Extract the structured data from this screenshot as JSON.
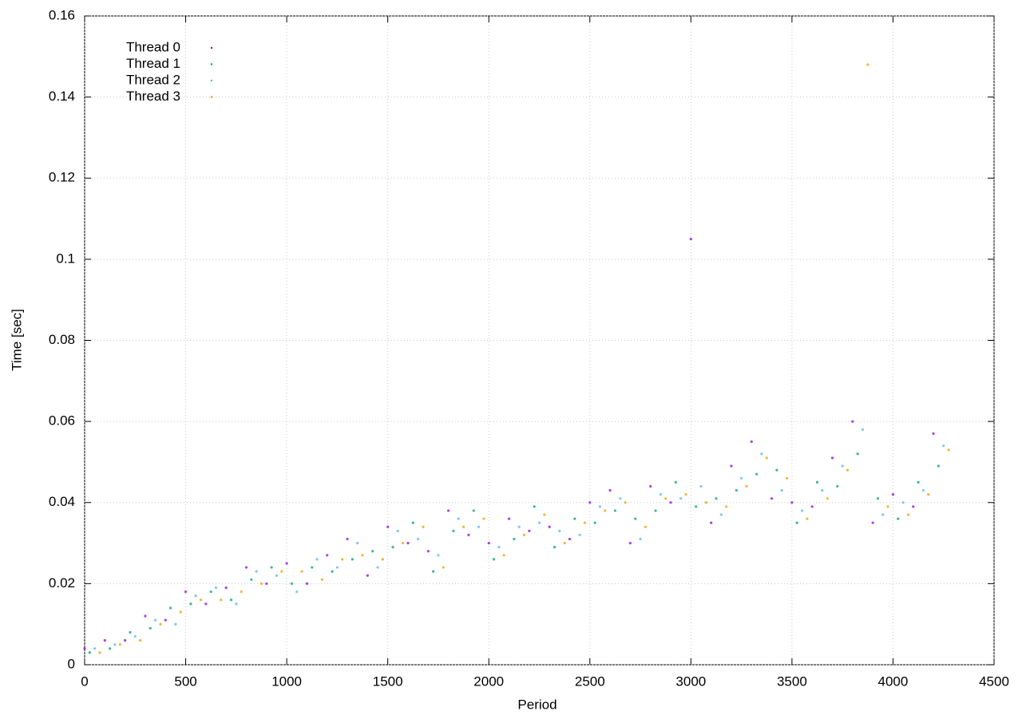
{
  "chart_data": {
    "type": "scatter",
    "x_label": "Period",
    "y_label": "Time [sec]",
    "xlim": [
      0,
      4500
    ],
    "ylim": [
      0,
      0.16
    ],
    "xticks": [
      0,
      500,
      1000,
      1500,
      2000,
      2500,
      3000,
      3500,
      4000,
      4500
    ],
    "yticks": [
      0,
      0.02,
      0.04,
      0.06,
      0.08,
      0.1,
      0.12,
      0.14,
      0.16
    ],
    "grid": true,
    "legend": "top-left",
    "series": [
      {
        "name": "Thread 0",
        "color": "#9400d3",
        "x": [
          0,
          100,
          200,
          300,
          400,
          500,
          600,
          700,
          800,
          900,
          1000,
          1100,
          1200,
          1300,
          1400,
          1500,
          1600,
          1700,
          1800,
          1900,
          2000,
          2100,
          2200,
          2300,
          2400,
          2500,
          2600,
          2700,
          2800,
          2900,
          3000,
          3100,
          3200,
          3300,
          3400,
          3500,
          3600,
          3700,
          3800,
          3900,
          4000,
          4100,
          4200
        ],
        "values": [
          0.004,
          0.006,
          0.006,
          0.012,
          0.011,
          0.018,
          0.015,
          0.019,
          0.024,
          0.02,
          0.025,
          0.02,
          0.027,
          0.031,
          0.022,
          0.034,
          0.03,
          0.028,
          0.038,
          0.032,
          0.03,
          0.036,
          0.033,
          0.034,
          0.031,
          0.04,
          0.043,
          0.03,
          0.044,
          0.04,
          0.105,
          0.035,
          0.049,
          0.055,
          0.041,
          0.04,
          0.039,
          0.051,
          0.06,
          0.035,
          0.042,
          0.039,
          0.057
        ]
      },
      {
        "name": "Thread 1",
        "color": "#009e73",
        "x": [
          25,
          125,
          225,
          325,
          425,
          525,
          625,
          725,
          825,
          925,
          1025,
          1125,
          1225,
          1325,
          1425,
          1525,
          1625,
          1725,
          1825,
          1925,
          2025,
          2125,
          2225,
          2325,
          2425,
          2525,
          2625,
          2725,
          2825,
          2925,
          3025,
          3125,
          3225,
          3325,
          3425,
          3525,
          3625,
          3725,
          3825,
          3925,
          4025,
          4125,
          4225
        ],
        "values": [
          0.003,
          0.004,
          0.008,
          0.009,
          0.014,
          0.015,
          0.018,
          0.016,
          0.021,
          0.024,
          0.02,
          0.024,
          0.023,
          0.026,
          0.028,
          0.029,
          0.035,
          0.023,
          0.033,
          0.038,
          0.026,
          0.031,
          0.039,
          0.029,
          0.036,
          0.035,
          0.038,
          0.036,
          0.038,
          0.045,
          0.039,
          0.041,
          0.043,
          0.047,
          0.048,
          0.035,
          0.045,
          0.044,
          0.052,
          0.041,
          0.036,
          0.045,
          0.049
        ]
      },
      {
        "name": "Thread 2",
        "color": "#56b4e9",
        "x": [
          50,
          150,
          250,
          350,
          450,
          550,
          650,
          750,
          850,
          950,
          1050,
          1150,
          1250,
          1350,
          1450,
          1550,
          1650,
          1750,
          1850,
          1950,
          2050,
          2150,
          2250,
          2350,
          2450,
          2550,
          2650,
          2750,
          2850,
          2950,
          3050,
          3150,
          3250,
          3350,
          3450,
          3550,
          3650,
          3750,
          3850,
          3950,
          4050,
          4150,
          4250
        ],
        "values": [
          0.004,
          0.005,
          0.007,
          0.011,
          0.01,
          0.017,
          0.019,
          0.015,
          0.023,
          0.022,
          0.018,
          0.026,
          0.024,
          0.03,
          0.024,
          0.033,
          0.031,
          0.027,
          0.036,
          0.034,
          0.029,
          0.034,
          0.035,
          0.033,
          0.032,
          0.039,
          0.041,
          0.031,
          0.042,
          0.041,
          0.044,
          0.037,
          0.046,
          0.052,
          0.043,
          0.038,
          0.043,
          0.049,
          0.058,
          0.037,
          0.04,
          0.043,
          0.054
        ]
      },
      {
        "name": "Thread 3",
        "color": "#e69f00",
        "x": [
          75,
          175,
          275,
          375,
          475,
          575,
          675,
          775,
          875,
          975,
          1075,
          1175,
          1275,
          1375,
          1475,
          1575,
          1675,
          1775,
          1875,
          1975,
          2075,
          2175,
          2275,
          2375,
          2475,
          2575,
          2675,
          2775,
          2875,
          2975,
          3075,
          3175,
          3275,
          3375,
          3475,
          3575,
          3675,
          3775,
          3875,
          3975,
          4075,
          4175,
          4275
        ],
        "values": [
          0.003,
          0.005,
          0.006,
          0.01,
          0.013,
          0.016,
          0.016,
          0.018,
          0.02,
          0.023,
          0.023,
          0.021,
          0.026,
          0.027,
          0.026,
          0.03,
          0.034,
          0.024,
          0.034,
          0.036,
          0.027,
          0.032,
          0.037,
          0.03,
          0.035,
          0.038,
          0.04,
          0.034,
          0.041,
          0.042,
          0.04,
          0.039,
          0.044,
          0.051,
          0.046,
          0.036,
          0.041,
          0.048,
          0.148,
          0.039,
          0.037,
          0.042,
          0.053
        ]
      }
    ]
  }
}
